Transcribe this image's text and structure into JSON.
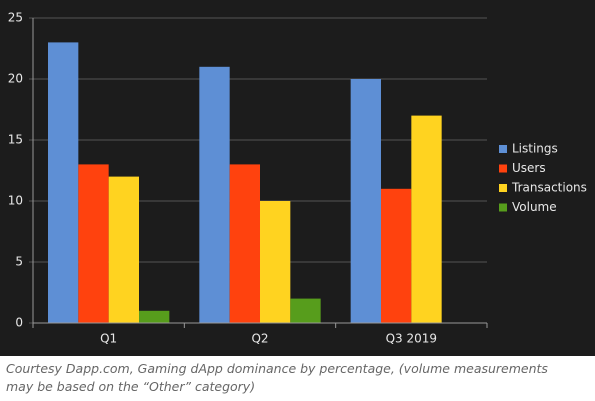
{
  "chart_data": {
    "type": "bar",
    "categories": [
      "Q1",
      "Q2",
      "Q3 2019"
    ],
    "series": [
      {
        "name": "Listings",
        "color": "#5e8fd5",
        "values": [
          23,
          21,
          20
        ]
      },
      {
        "name": "Users",
        "color": "#ff420e",
        "values": [
          13,
          13,
          11
        ]
      },
      {
        "name": "Transactions",
        "color": "#ffd320",
        "values": [
          12,
          10,
          17
        ]
      },
      {
        "name": "Volume",
        "color": "#579d1c",
        "values": [
          1,
          2,
          0
        ]
      }
    ],
    "ylim": [
      0,
      25
    ],
    "yticks": [
      0,
      5,
      10,
      15,
      20,
      25
    ],
    "grid": true,
    "legend": "right"
  },
  "caption": [
    "Courtesy Dapp.com, Gaming dApp dominance by percentage, (volume measurements",
    "may be based on the “Other” category)"
  ]
}
